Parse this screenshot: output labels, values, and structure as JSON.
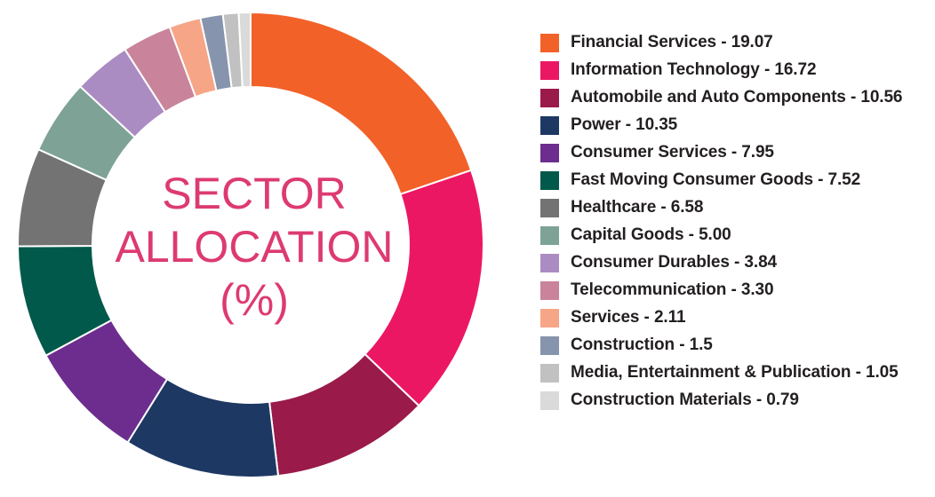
{
  "chart_data": {
    "type": "pie",
    "title_lines": [
      "SECTOR",
      "ALLOCATION",
      "(%)"
    ],
    "title_color": "#dd3a72",
    "categories": [
      "Financial Services",
      "Information Technology",
      "Automobile and Auto Components",
      "Power",
      "Consumer Services",
      "Fast Moving Consumer Goods",
      "Healthcare",
      "Capital Goods",
      "Consumer Durables",
      "Telecommunication",
      "Services",
      "Construction",
      "Media, Entertainment & Publication",
      "Construction Materials"
    ],
    "values": [
      19.07,
      16.72,
      10.56,
      10.35,
      7.95,
      7.52,
      6.58,
      5.0,
      3.84,
      3.3,
      2.11,
      1.5,
      1.05,
      0.79
    ],
    "labels": [
      "Financial Services - 19.07",
      "Information Technology - 16.72",
      "Automobile and Auto Components - 10.56",
      "Power - 10.35",
      "Consumer Services - 7.95",
      "Fast Moving Consumer Goods - 7.52",
      "Healthcare - 6.58",
      "Capital Goods - 5.00",
      "Consumer Durables - 3.84",
      "Telecommunication - 3.30",
      "Services - 2.11",
      "Construction - 1.5",
      "Media, Entertainment & Publication - 1.05",
      "Construction Materials - 0.79"
    ],
    "colors": [
      "#f26128",
      "#ec1763",
      "#9a1a4a",
      "#1e3864",
      "#6d2d8f",
      "#00594a",
      "#737373",
      "#7ea396",
      "#ab8cc2",
      "#c9849b",
      "#f6a587",
      "#8794ad",
      "#c1c1c1",
      "#dadada"
    ],
    "donut": true,
    "legend": "right"
  }
}
